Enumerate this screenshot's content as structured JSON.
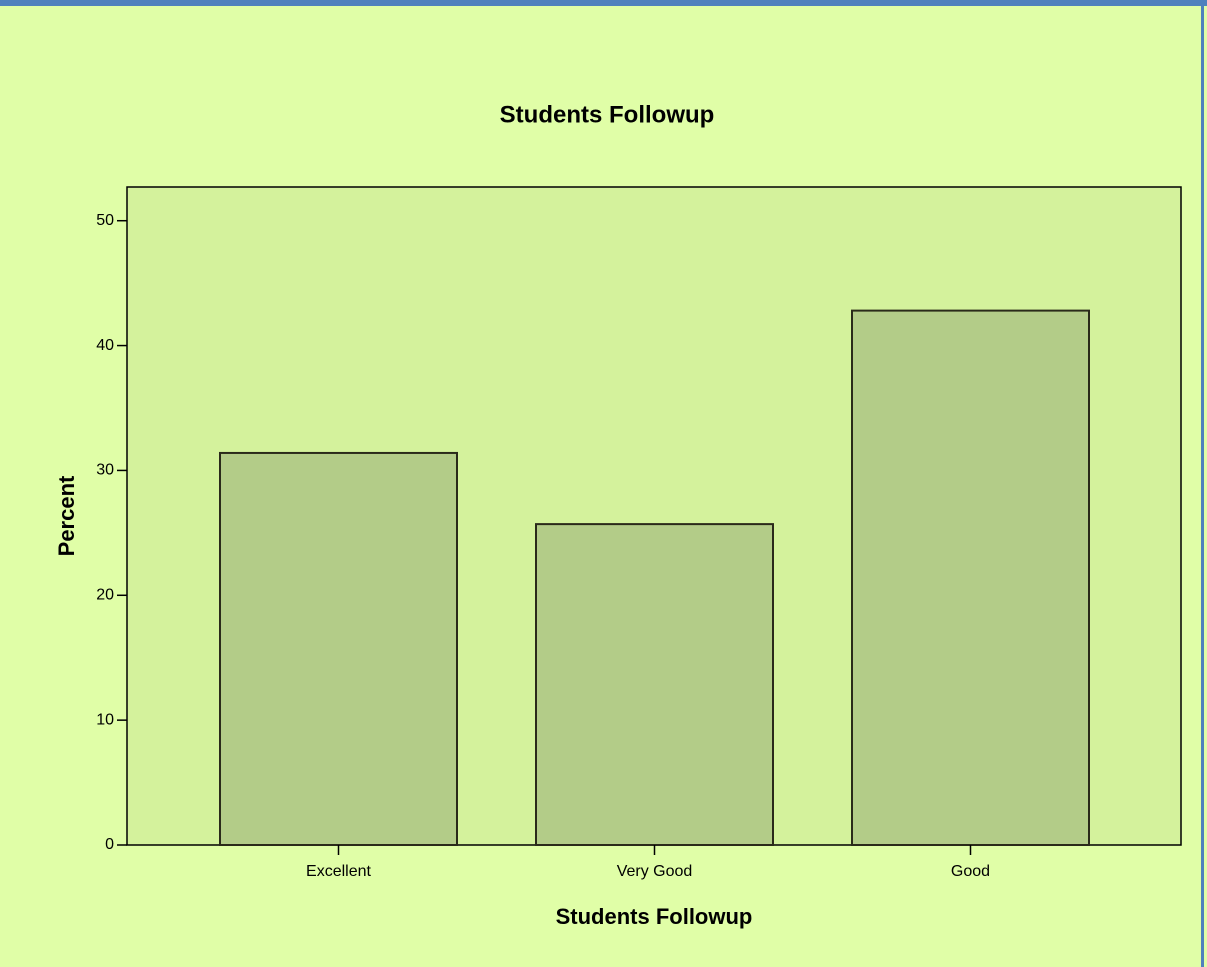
{
  "chart_data": {
    "type": "bar",
    "title": "Students Followup",
    "x_label": "Students Followup",
    "y_label": "Percent",
    "categories": [
      "Excellent",
      "Very Good",
      "Good"
    ],
    "values": [
      31.4,
      25.7,
      42.8
    ],
    "color": "#b3cc88",
    "ylim": [
      0,
      52.7
    ],
    "yticks": [
      0,
      10,
      20,
      30,
      40,
      50
    ],
    "grid": false
  }
}
